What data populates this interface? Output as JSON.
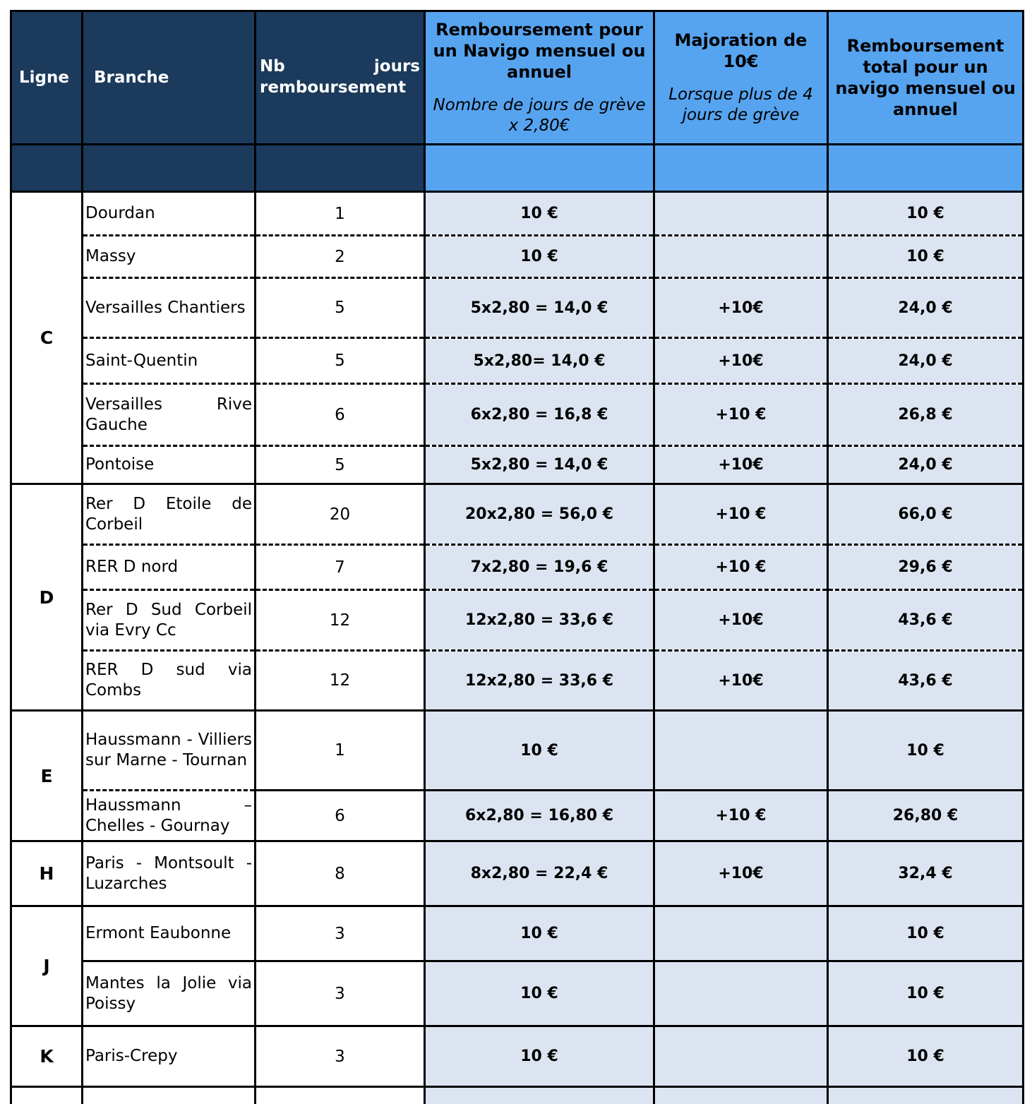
{
  "colors": {
    "header_dark": "#1B3A5C",
    "header_blue": "#56A4F0",
    "cell_lavender": "#DCE4F1",
    "border": "#000000",
    "header_dark_text": "#FFFFFF"
  },
  "table": {
    "headers": {
      "ligne": "Ligne",
      "branche": "Branche",
      "nb_jours": "Nb jours remboursement",
      "remboursement_title": "Remboursement pour un Navigo mensuel ou annuel",
      "remboursement_subtitle": "Nombre de jours de grève x 2,80€",
      "majoration_title": "Majoration de 10€",
      "majoration_subtitle": "Lorsque plus de 4 jours de grève",
      "total_title": "Remboursement total pour un navigo mensuel ou annuel"
    },
    "groups": [
      {
        "ligne": "C",
        "row_divider": "dashed",
        "rows": [
          {
            "branche": "Dourdan",
            "nb": "1",
            "remboursement": "10 €",
            "majoration": "",
            "total": "10 €"
          },
          {
            "branche": "Massy",
            "nb": "2",
            "remboursement": "10 €",
            "majoration": "",
            "total": "10 €"
          },
          {
            "branche": "Versailles Chantiers",
            "nb": "5",
            "remboursement": "5x2,80 = 14,0 €",
            "majoration": "+10€",
            "total": "24,0 €"
          },
          {
            "branche": "Saint-Quentin",
            "nb": "5",
            "remboursement": "5x2,80= 14,0 €",
            "majoration": "+10€",
            "total": "24,0 €"
          },
          {
            "branche": "Versailles Rive Gauche",
            "nb": "6",
            "remboursement": "6x2,80 = 16,8 €",
            "majoration": "+10 €",
            "total": "26,8 €"
          },
          {
            "branche": "Pontoise",
            "nb": "5",
            "remboursement": "5x2,80 = 14,0 €",
            "majoration": "+10€",
            "total": "24,0 €"
          }
        ]
      },
      {
        "ligne": "D",
        "row_divider": "dashed",
        "rows": [
          {
            "branche": "Rer D Etoile de Corbeil",
            "nb": "20",
            "remboursement": "20x2,80 = 56,0 €",
            "majoration": "+10 €",
            "total": "66,0 €"
          },
          {
            "branche": "RER D nord",
            "nb": "7",
            "remboursement": "7x2,80 = 19,6 €",
            "majoration": "+10 €",
            "total": "29,6 €"
          },
          {
            "branche": "Rer D Sud Corbeil via Evry Cc",
            "nb": "12",
            "remboursement": "12x2,80 = 33,6 €",
            "majoration": "+10€",
            "total": "43,6 €"
          },
          {
            "branche": "RER D sud via Combs",
            "nb": "12",
            "remboursement": "12x2,80 = 33,6 €",
            "majoration": "+10€",
            "total": "43,6 €"
          }
        ]
      },
      {
        "ligne": "E",
        "row_divider": "mixed",
        "rows": [
          {
            "branche": "Haussmann - Villiers sur Marne - Tournan",
            "nb": "1",
            "remboursement": "10 €",
            "majoration": "",
            "total": "10 €"
          },
          {
            "branche": "Haussmann – Chelles - Gournay",
            "nb": "6",
            "remboursement": "6x2,80 = 16,80 €",
            "majoration": "+10 €",
            "total": "26,80 €"
          }
        ]
      },
      {
        "ligne": "H",
        "row_divider": "solid",
        "rows": [
          {
            "branche": "Paris - Montsoult - Luzarches",
            "nb": "8",
            "remboursement": "8x2,80 = 22,4 €",
            "majoration": "+10€",
            "total": "32,4 €"
          }
        ]
      },
      {
        "ligne": "J",
        "row_divider": "solid",
        "rows": [
          {
            "branche": "Ermont Eaubonne",
            "nb": "3",
            "remboursement": "10 €",
            "majoration": "",
            "total": "10 €"
          },
          {
            "branche": "Mantes la Jolie via Poissy",
            "nb": "3",
            "remboursement": "10 €",
            "majoration": "",
            "total": "10 €"
          }
        ]
      },
      {
        "ligne": "K",
        "row_divider": "solid",
        "rows": [
          {
            "branche": "Paris-Crepy",
            "nb": "3",
            "remboursement": "10 €",
            "majoration": "",
            "total": "10 €"
          }
        ]
      }
    ]
  }
}
